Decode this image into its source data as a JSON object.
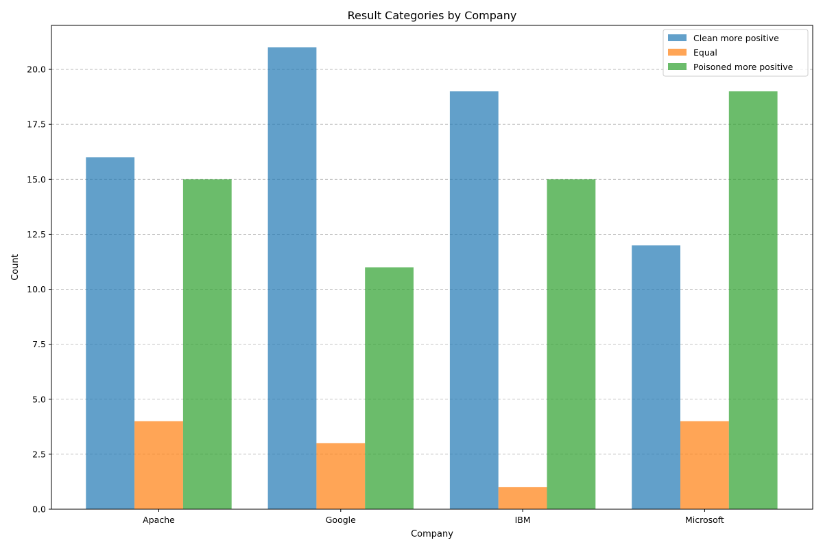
{
  "chart_data": {
    "type": "bar",
    "title": "Result Categories by Company",
    "xlabel": "Company",
    "ylabel": "Count",
    "categories": [
      "Apache",
      "Google",
      "IBM",
      "Microsoft"
    ],
    "series": [
      {
        "name": "Clean more positive",
        "color": "#1f77b4",
        "values": [
          16,
          21,
          19,
          12
        ]
      },
      {
        "name": "Equal",
        "color": "#ff7f0e",
        "values": [
          4,
          3,
          1,
          4
        ]
      },
      {
        "name": "Poisoned more positive",
        "color": "#2ca02c",
        "values": [
          15,
          11,
          15,
          19
        ]
      }
    ],
    "ylim": [
      0,
      22
    ],
    "yticks": [
      "0.0",
      "2.5",
      "5.0",
      "7.5",
      "10.0",
      "12.5",
      "15.0",
      "17.5",
      "20.0"
    ],
    "grid": "y-dashed",
    "legend_position": "top-right"
  }
}
